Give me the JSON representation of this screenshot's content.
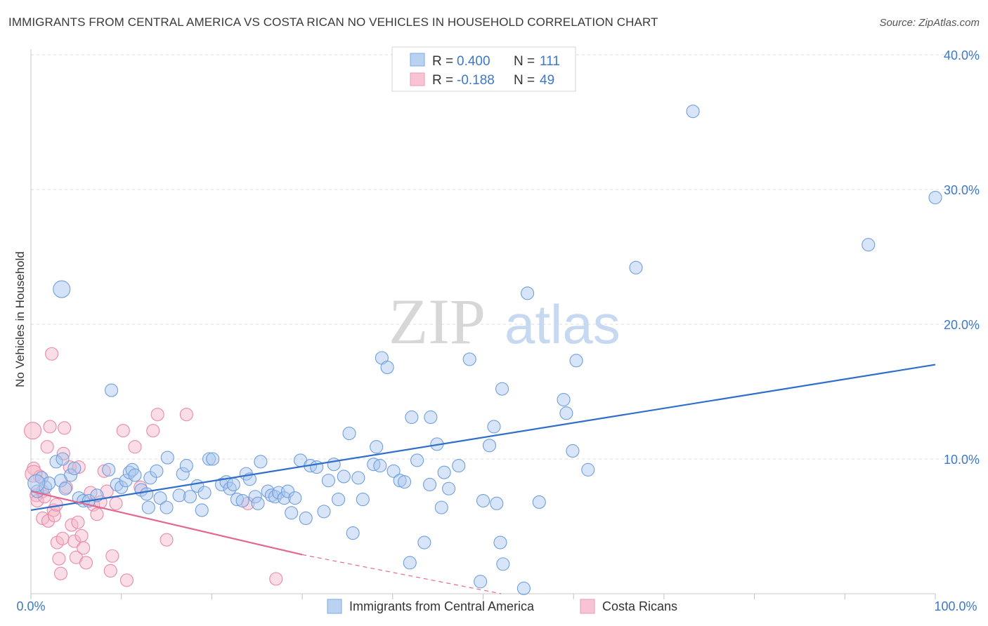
{
  "header": {
    "title": "IMMIGRANTS FROM CENTRAL AMERICA VS COSTA RICAN NO VEHICLES IN HOUSEHOLD CORRELATION CHART",
    "source": "Source: ZipAtlas.com"
  },
  "watermark": {
    "zip": "ZIP",
    "atlas": "atlas"
  },
  "colors": {
    "blue": "#2f6fc9",
    "blue_fill": "#a9c6ef",
    "pink": "#e2688f",
    "pink_fill": "#f5b4c8",
    "axis_label": "#3c78c8",
    "grid": "#d8d8d8"
  },
  "legend_box": {
    "rows": [
      {
        "r_label": "R =",
        "r_value": "0.400",
        "n_label": "N =",
        "n_value": "111"
      },
      {
        "r_label": "R =",
        "r_value": "-0.188",
        "n_label": "N =",
        "n_value": "49"
      }
    ]
  },
  "chart_data": {
    "type": "scatter",
    "title": "IMMIGRANTS FROM CENTRAL AMERICA VS COSTA RICAN NO VEHICLES IN HOUSEHOLD CORRELATION CHART",
    "xlabel": "",
    "ylabel": "No Vehicles in Household",
    "xlim": [
      0,
      100
    ],
    "ylim": [
      0,
      40
    ],
    "x_tick_labels": {
      "left": "0.0%",
      "right": "100.0%"
    },
    "y_ticks": [
      {
        "value": 10,
        "label": "10.0%"
      },
      {
        "value": 20,
        "label": "20.0%"
      },
      {
        "value": 30,
        "label": "30.0%"
      },
      {
        "value": 40,
        "label": "40.0%"
      }
    ],
    "grid": true,
    "legend_position": "bottom",
    "series": [
      {
        "name": "Immigrants from Central America",
        "color": "#2f6fc9",
        "trend": {
          "x": [
            0,
            100
          ],
          "y": [
            6.2,
            17.0
          ],
          "solid_to": 100
        },
        "points": [
          [
            0.7,
            7.6
          ],
          [
            1.2,
            8.6
          ],
          [
            1.6,
            7.9
          ],
          [
            2.0,
            8.2
          ],
          [
            2.8,
            9.8
          ],
          [
            3.3,
            8.4
          ],
          [
            3.5,
            10.0
          ],
          [
            3.8,
            7.8
          ],
          [
            4.4,
            8.8
          ],
          [
            4.8,
            9.3
          ],
          [
            5.3,
            7.1
          ],
          [
            5.8,
            6.9
          ],
          [
            6.4,
            6.9
          ],
          [
            7.3,
            7.3
          ],
          [
            8.6,
            9.2
          ],
          [
            8.9,
            15.1
          ],
          [
            9.5,
            8.1
          ],
          [
            10.0,
            7.9
          ],
          [
            10.5,
            8.4
          ],
          [
            10.9,
            9.0
          ],
          [
            11.2,
            9.2
          ],
          [
            11.5,
            8.8
          ],
          [
            12.2,
            7.7
          ],
          [
            12.8,
            7.4
          ],
          [
            13.0,
            6.4
          ],
          [
            13.2,
            8.6
          ],
          [
            13.9,
            9.1
          ],
          [
            14.3,
            7.1
          ],
          [
            15.0,
            6.4
          ],
          [
            15.1,
            10.1
          ],
          [
            16.4,
            7.3
          ],
          [
            16.8,
            8.9
          ],
          [
            17.2,
            9.5
          ],
          [
            17.6,
            7.2
          ],
          [
            18.4,
            8.0
          ],
          [
            18.9,
            6.2
          ],
          [
            19.2,
            7.5
          ],
          [
            19.7,
            10.0
          ],
          [
            20.1,
            10.0
          ],
          [
            21.1,
            8.1
          ],
          [
            21.6,
            8.3
          ],
          [
            22.0,
            7.8
          ],
          [
            22.4,
            8.1
          ],
          [
            22.8,
            7.0
          ],
          [
            23.4,
            6.9
          ],
          [
            23.8,
            8.9
          ],
          [
            24.2,
            8.5
          ],
          [
            24.8,
            7.2
          ],
          [
            25.1,
            6.7
          ],
          [
            25.4,
            9.8
          ],
          [
            26.2,
            7.6
          ],
          [
            26.6,
            7.3
          ],
          [
            27.0,
            7.2
          ],
          [
            27.4,
            7.5
          ],
          [
            28.0,
            7.1
          ],
          [
            28.4,
            7.6
          ],
          [
            28.8,
            6.0
          ],
          [
            29.2,
            7.1
          ],
          [
            29.8,
            9.9
          ],
          [
            30.4,
            5.6
          ],
          [
            30.9,
            9.5
          ],
          [
            31.6,
            9.4
          ],
          [
            32.4,
            6.1
          ],
          [
            32.9,
            8.4
          ],
          [
            33.5,
            9.6
          ],
          [
            34.0,
            7.0
          ],
          [
            34.6,
            8.7
          ],
          [
            35.2,
            11.9
          ],
          [
            35.6,
            4.5
          ],
          [
            36.2,
            8.6
          ],
          [
            36.7,
            7.0
          ],
          [
            37.9,
            9.6
          ],
          [
            38.2,
            10.9
          ],
          [
            38.6,
            9.5
          ],
          [
            38.8,
            17.5
          ],
          [
            39.4,
            16.8
          ],
          [
            40.1,
            9.1
          ],
          [
            40.8,
            8.4
          ],
          [
            41.3,
            8.3
          ],
          [
            41.9,
            2.3
          ],
          [
            42.1,
            13.1
          ],
          [
            42.7,
            9.9
          ],
          [
            43.5,
            3.8
          ],
          [
            44.1,
            8.1
          ],
          [
            44.2,
            13.1
          ],
          [
            44.9,
            11.1
          ],
          [
            45.4,
            6.4
          ],
          [
            45.7,
            9.0
          ],
          [
            46.2,
            7.8
          ],
          [
            47.3,
            9.5
          ],
          [
            48.5,
            17.4
          ],
          [
            49.7,
            0.9
          ],
          [
            50.0,
            6.9
          ],
          [
            50.7,
            11.0
          ],
          [
            51.2,
            12.4
          ],
          [
            51.5,
            6.7
          ],
          [
            52.1,
            15.2
          ],
          [
            51.9,
            3.8
          ],
          [
            52.2,
            2.2
          ],
          [
            54.9,
            22.3
          ],
          [
            54.5,
            0.4
          ],
          [
            56.2,
            6.8
          ],
          [
            58.9,
            14.4
          ],
          [
            59.2,
            13.4
          ],
          [
            59.9,
            10.6
          ],
          [
            60.3,
            17.3
          ],
          [
            61.6,
            9.2
          ],
          [
            66.9,
            24.2
          ],
          [
            73.2,
            35.8
          ],
          [
            92.6,
            25.9
          ],
          [
            100,
            29.4
          ]
        ],
        "large_points": [
          [
            3.4,
            22.6
          ],
          [
            0.6,
            8.2
          ]
        ]
      },
      {
        "name": "Costa Ricans",
        "color": "#e2688f",
        "trend": {
          "x": [
            0,
            30,
            52
          ],
          "y": [
            7.6,
            2.9,
            0.0
          ],
          "solid_to": 30
        },
        "points": [
          [
            0.3,
            9.3
          ],
          [
            0.6,
            7.3
          ],
          [
            0.7,
            6.9
          ],
          [
            1.0,
            8.7
          ],
          [
            1.3,
            7.6
          ],
          [
            1.3,
            5.6
          ],
          [
            1.5,
            7.2
          ],
          [
            1.8,
            10.9
          ],
          [
            1.9,
            5.4
          ],
          [
            2.1,
            12.4
          ],
          [
            2.3,
            17.8
          ],
          [
            2.5,
            6.2
          ],
          [
            2.6,
            5.8
          ],
          [
            2.8,
            6.6
          ],
          [
            2.9,
            3.8
          ],
          [
            3.1,
            2.6
          ],
          [
            3.3,
            1.5
          ],
          [
            3.5,
            4.1
          ],
          [
            3.6,
            10.4
          ],
          [
            3.7,
            12.3
          ],
          [
            3.9,
            7.9
          ],
          [
            4.3,
            9.4
          ],
          [
            4.5,
            5.1
          ],
          [
            4.8,
            3.9
          ],
          [
            5.0,
            2.7
          ],
          [
            5.2,
            5.3
          ],
          [
            5.3,
            9.4
          ],
          [
            5.6,
            4.3
          ],
          [
            5.8,
            3.4
          ],
          [
            6.1,
            2.3
          ],
          [
            6.6,
            7.5
          ],
          [
            6.9,
            6.6
          ],
          [
            7.3,
            5.9
          ],
          [
            7.7,
            6.8
          ],
          [
            8.1,
            9.1
          ],
          [
            8.4,
            7.6
          ],
          [
            8.8,
            1.7
          ],
          [
            9.0,
            2.8
          ],
          [
            9.4,
            6.7
          ],
          [
            10.2,
            12.1
          ],
          [
            10.6,
            1.0
          ],
          [
            11.5,
            10.9
          ],
          [
            12.1,
            7.9
          ],
          [
            13.5,
            12.1
          ],
          [
            14.0,
            13.3
          ],
          [
            15.0,
            4.0
          ],
          [
            17.2,
            13.3
          ],
          [
            24.0,
            6.7
          ],
          [
            27.1,
            1.1
          ]
        ],
        "large_points": [
          [
            0.2,
            12.1
          ],
          [
            0.3,
            8.9
          ]
        ]
      }
    ]
  }
}
